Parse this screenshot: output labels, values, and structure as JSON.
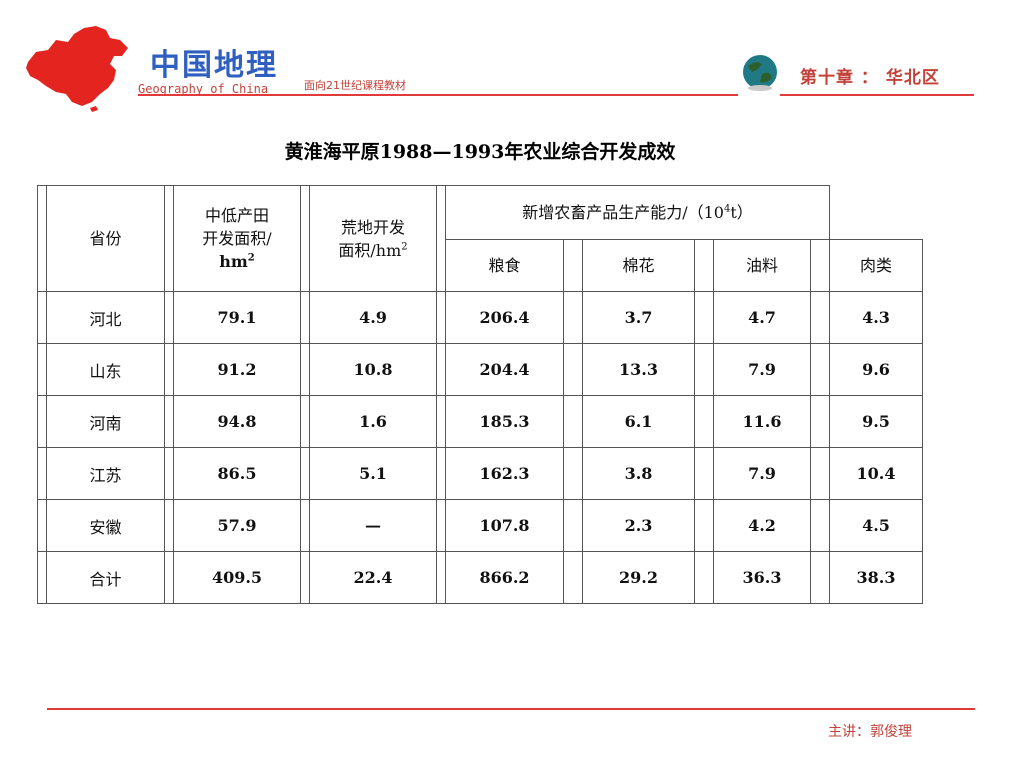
{
  "header": {
    "brand_cn": "中国地理",
    "brand_en": "Geography of China",
    "subtitle": "面向21世纪课程教材",
    "chapter": "第十章 ： 华北区",
    "colors": {
      "accent_red": "#e23a3a",
      "brand_blue": "#2f5fbf",
      "map_red": "#e3241f"
    },
    "icons": [
      "china-map-icon",
      "globe-icon"
    ]
  },
  "title": "黄淮海平原1988—1993年农业综合开发成效",
  "table": {
    "headers": {
      "province": "省份",
      "low_yield_area_line1": "中低产田",
      "low_yield_area_line2": "开发面积/",
      "low_yield_area_unit": "hm",
      "wasteland_line1": "荒地开发",
      "wasteland_line2": "面积/hm",
      "new_capacity_prefix": "新增农畜产品生产能力/（10",
      "new_capacity_suffix": "t）",
      "grain": "粮食",
      "cotton": "棉花",
      "oil": "油料",
      "meat": "肉类",
      "sup2": "2",
      "sup4": "4"
    },
    "rows": [
      {
        "province": "河北",
        "low_yield": "79.1",
        "wasteland": "4.9",
        "grain": "206.4",
        "cotton": "3.7",
        "oil": "4.7",
        "meat": "4.3"
      },
      {
        "province": "山东",
        "low_yield": "91.2",
        "wasteland": "10.8",
        "grain": "204.4",
        "cotton": "13.3",
        "oil": "7.9",
        "meat": "9.6"
      },
      {
        "province": "河南",
        "low_yield": "94.8",
        "wasteland": "1.6",
        "grain": "185.3",
        "cotton": "6.1",
        "oil": "11.6",
        "meat": "9.5"
      },
      {
        "province": "江苏",
        "low_yield": "86.5",
        "wasteland": "5.1",
        "grain": "162.3",
        "cotton": "3.8",
        "oil": "7.9",
        "meat": "10.4"
      },
      {
        "province": "安徽",
        "low_yield": "57.9",
        "wasteland": "—",
        "grain": "107.8",
        "cotton": "2.3",
        "oil": "4.2",
        "meat": "4.5"
      },
      {
        "province": "合计",
        "low_yield": "409.5",
        "wasteland": "22.4",
        "grain": "866.2",
        "cotton": "29.2",
        "oil": "36.3",
        "meat": "38.3"
      }
    ]
  },
  "footer": {
    "speaker": "主讲：郭俊理"
  }
}
